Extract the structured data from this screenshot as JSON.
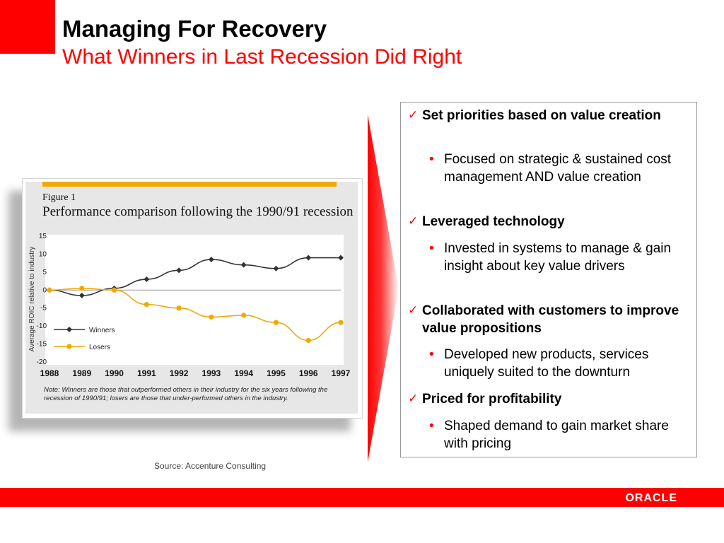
{
  "header": {
    "title": "Managing For Recovery",
    "subtitle": "What Winners in Last Recession Did Right"
  },
  "figure": {
    "label": "Figure 1",
    "title": "Performance comparison following the 1990/91 recession",
    "note": "Note: Winners are those that outperformed others in their industry for the six years following the recession of 1990/91; losers are those that under-performed others in the industry.",
    "accent_color": "#f2a900"
  },
  "chart_data": {
    "type": "line",
    "title": "Performance comparison following the 1990/91 recession",
    "ylabel": "Average ROIC relative to industry",
    "xlabel": "",
    "x": [
      "1988",
      "1989",
      "1990",
      "1991",
      "1992",
      "1993",
      "1994",
      "1995",
      "1996",
      "1997"
    ],
    "ylim": [
      -20,
      15
    ],
    "yticks": [
      "15",
      "10",
      "5",
      "0",
      "-5",
      "-10",
      "-15",
      "-20"
    ],
    "legend_position": "bottom-left",
    "series": [
      {
        "name": "Winners",
        "color": "#333333",
        "values": [
          0,
          -1.5,
          0.5,
          3,
          5.5,
          8.5,
          7,
          6,
          9,
          9
        ]
      },
      {
        "name": "Losers",
        "color": "#f2a900",
        "values": [
          0,
          0.5,
          0,
          -4,
          -5,
          -7.5,
          -7,
          -9,
          -14,
          -9
        ]
      }
    ]
  },
  "points": [
    {
      "heading": "Set priorities based on value creation",
      "detail": "Focused on strategic & sustained cost management AND value creation"
    },
    {
      "heading": "Leveraged technology",
      "detail": "Invested in systems to manage & gain insight about key value drivers"
    },
    {
      "heading": "Collaborated with customers to improve value propositions",
      "detail": "Developed new products, services uniquely suited to the downturn"
    },
    {
      "heading": "Priced for profitability",
      "detail": "Shaped demand to gain market share with pricing"
    }
  ],
  "icons": {
    "check": "check-icon",
    "bullet": "bullet-icon"
  },
  "source": "Source: Accenture Consulting",
  "footer": {
    "logo_text": "ORACLE",
    "brand_color": "#ff0000"
  }
}
